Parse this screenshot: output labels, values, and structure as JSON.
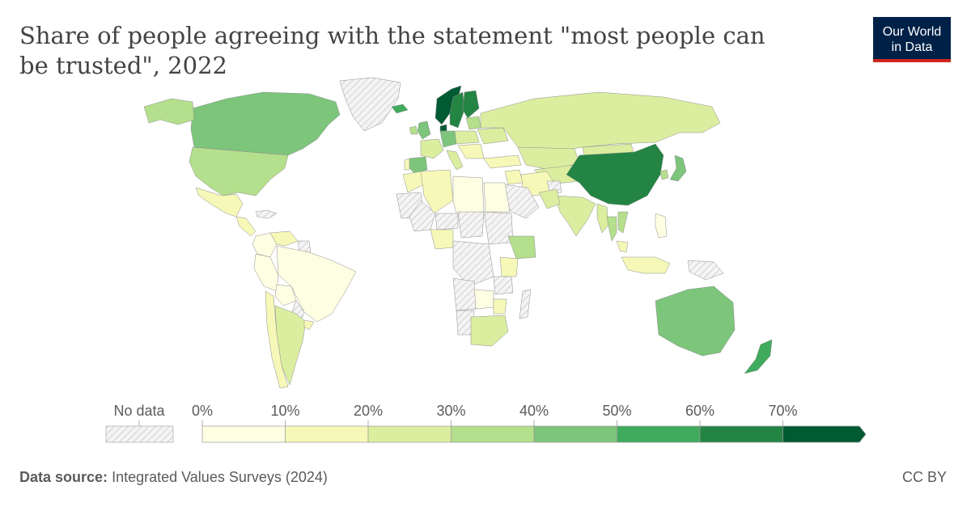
{
  "header": {
    "title": "Share of people agreeing with the statement \"most people can be trusted\", 2022",
    "logo_line1": "Our World",
    "logo_line2": "in Data"
  },
  "colors": {
    "nodata": "#e0e0e0",
    "bins": [
      "#fefee3",
      "#f6f8b8",
      "#dbeea0",
      "#b4df8c",
      "#7cc57b",
      "#41ab5d",
      "#238443",
      "#005a32"
    ],
    "brand": "#002147",
    "brand_accent": "#ce261e"
  },
  "legend": {
    "nodata_label": "No data",
    "ticks": [
      "0%",
      "10%",
      "20%",
      "30%",
      "40%",
      "50%",
      "60%",
      "70%"
    ]
  },
  "map_data": {
    "value_unit": "% agreeing",
    "regions": [
      {
        "name": "Greenland",
        "bin": "nodata"
      },
      {
        "name": "Canada",
        "bin": 4
      },
      {
        "name": "Alaska",
        "bin": 3
      },
      {
        "name": "United States",
        "bin": 3
      },
      {
        "name": "Mexico",
        "bin": 1
      },
      {
        "name": "Central America",
        "bin": 1
      },
      {
        "name": "Caribbean",
        "bin": "nodata"
      },
      {
        "name": "Colombia",
        "bin": 0
      },
      {
        "name": "Venezuela",
        "bin": 1
      },
      {
        "name": "Guianas",
        "bin": "nodata"
      },
      {
        "name": "Brazil",
        "bin": 0
      },
      {
        "name": "Peru",
        "bin": 0
      },
      {
        "name": "Bolivia",
        "bin": 0
      },
      {
        "name": "Paraguay",
        "bin": "nodata"
      },
      {
        "name": "Chile",
        "bin": 1
      },
      {
        "name": "Argentina",
        "bin": 2
      },
      {
        "name": "Uruguay",
        "bin": 1
      },
      {
        "name": "Iceland",
        "bin": 5
      },
      {
        "name": "Norway",
        "bin": 7
      },
      {
        "name": "Sweden",
        "bin": 6
      },
      {
        "name": "Finland",
        "bin": 6
      },
      {
        "name": "Denmark",
        "bin": 7
      },
      {
        "name": "United Kingdom",
        "bin": 4
      },
      {
        "name": "Ireland",
        "bin": 3
      },
      {
        "name": "France",
        "bin": 2
      },
      {
        "name": "Spain",
        "bin": 4
      },
      {
        "name": "Portugal",
        "bin": 1
      },
      {
        "name": "Germany",
        "bin": 4
      },
      {
        "name": "Italy",
        "bin": 2
      },
      {
        "name": "Central Europe",
        "bin": 2
      },
      {
        "name": "Baltics",
        "bin": 3
      },
      {
        "name": "Balkans",
        "bin": 1
      },
      {
        "name": "Ukraine",
        "bin": 2
      },
      {
        "name": "Russia",
        "bin": 2
      },
      {
        "name": "Turkey",
        "bin": 1
      },
      {
        "name": "Kazakhstan",
        "bin": 2
      },
      {
        "name": "Central Asia",
        "bin": 2
      },
      {
        "name": "Mongolia",
        "bin": 2
      },
      {
        "name": "China",
        "bin": 6
      },
      {
        "name": "Japan",
        "bin": 4
      },
      {
        "name": "South Korea",
        "bin": 3
      },
      {
        "name": "India",
        "bin": 2
      },
      {
        "name": "Iran",
        "bin": 1
      },
      {
        "name": "Saudi Arabia",
        "bin": "nodata"
      },
      {
        "name": "Iraq",
        "bin": 1
      },
      {
        "name": "Afghanistan",
        "bin": "nodata"
      },
      {
        "name": "Pakistan",
        "bin": 2
      },
      {
        "name": "Myanmar",
        "bin": 2
      },
      {
        "name": "Thailand",
        "bin": 3
      },
      {
        "name": "Vietnam",
        "bin": 3
      },
      {
        "name": "Philippines",
        "bin": 0
      },
      {
        "name": "Malaysia",
        "bin": 1
      },
      {
        "name": "Indonesia",
        "bin": 1
      },
      {
        "name": "Papua New Guinea",
        "bin": "nodata"
      },
      {
        "name": "Australia",
        "bin": 4
      },
      {
        "name": "New Zealand",
        "bin": 5
      },
      {
        "name": "Morocco",
        "bin": 1
      },
      {
        "name": "Algeria",
        "bin": 1
      },
      {
        "name": "Libya",
        "bin": 0
      },
      {
        "name": "Egypt",
        "bin": 0
      },
      {
        "name": "Mauritania",
        "bin": "nodata"
      },
      {
        "name": "Mali",
        "bin": "nodata"
      },
      {
        "name": "Niger",
        "bin": "nodata"
      },
      {
        "name": "Chad",
        "bin": "nodata"
      },
      {
        "name": "Sudan",
        "bin": "nodata"
      },
      {
        "name": "Nigeria",
        "bin": 1
      },
      {
        "name": "Ethiopia",
        "bin": 3
      },
      {
        "name": "Kenya",
        "bin": 1
      },
      {
        "name": "Central Africa",
        "bin": "nodata"
      },
      {
        "name": "Tanzania",
        "bin": "nodata"
      },
      {
        "name": "Zambia",
        "bin": 0
      },
      {
        "name": "Zimbabwe",
        "bin": 1
      },
      {
        "name": "Angola",
        "bin": "nodata"
      },
      {
        "name": "Namibia",
        "bin": "nodata"
      },
      {
        "name": "South Africa",
        "bin": 2
      },
      {
        "name": "Madagascar",
        "bin": "nodata"
      }
    ]
  },
  "footer": {
    "source_label": "Data source:",
    "source_text": "Integrated Values Surveys (2024)",
    "license": "CC BY"
  }
}
